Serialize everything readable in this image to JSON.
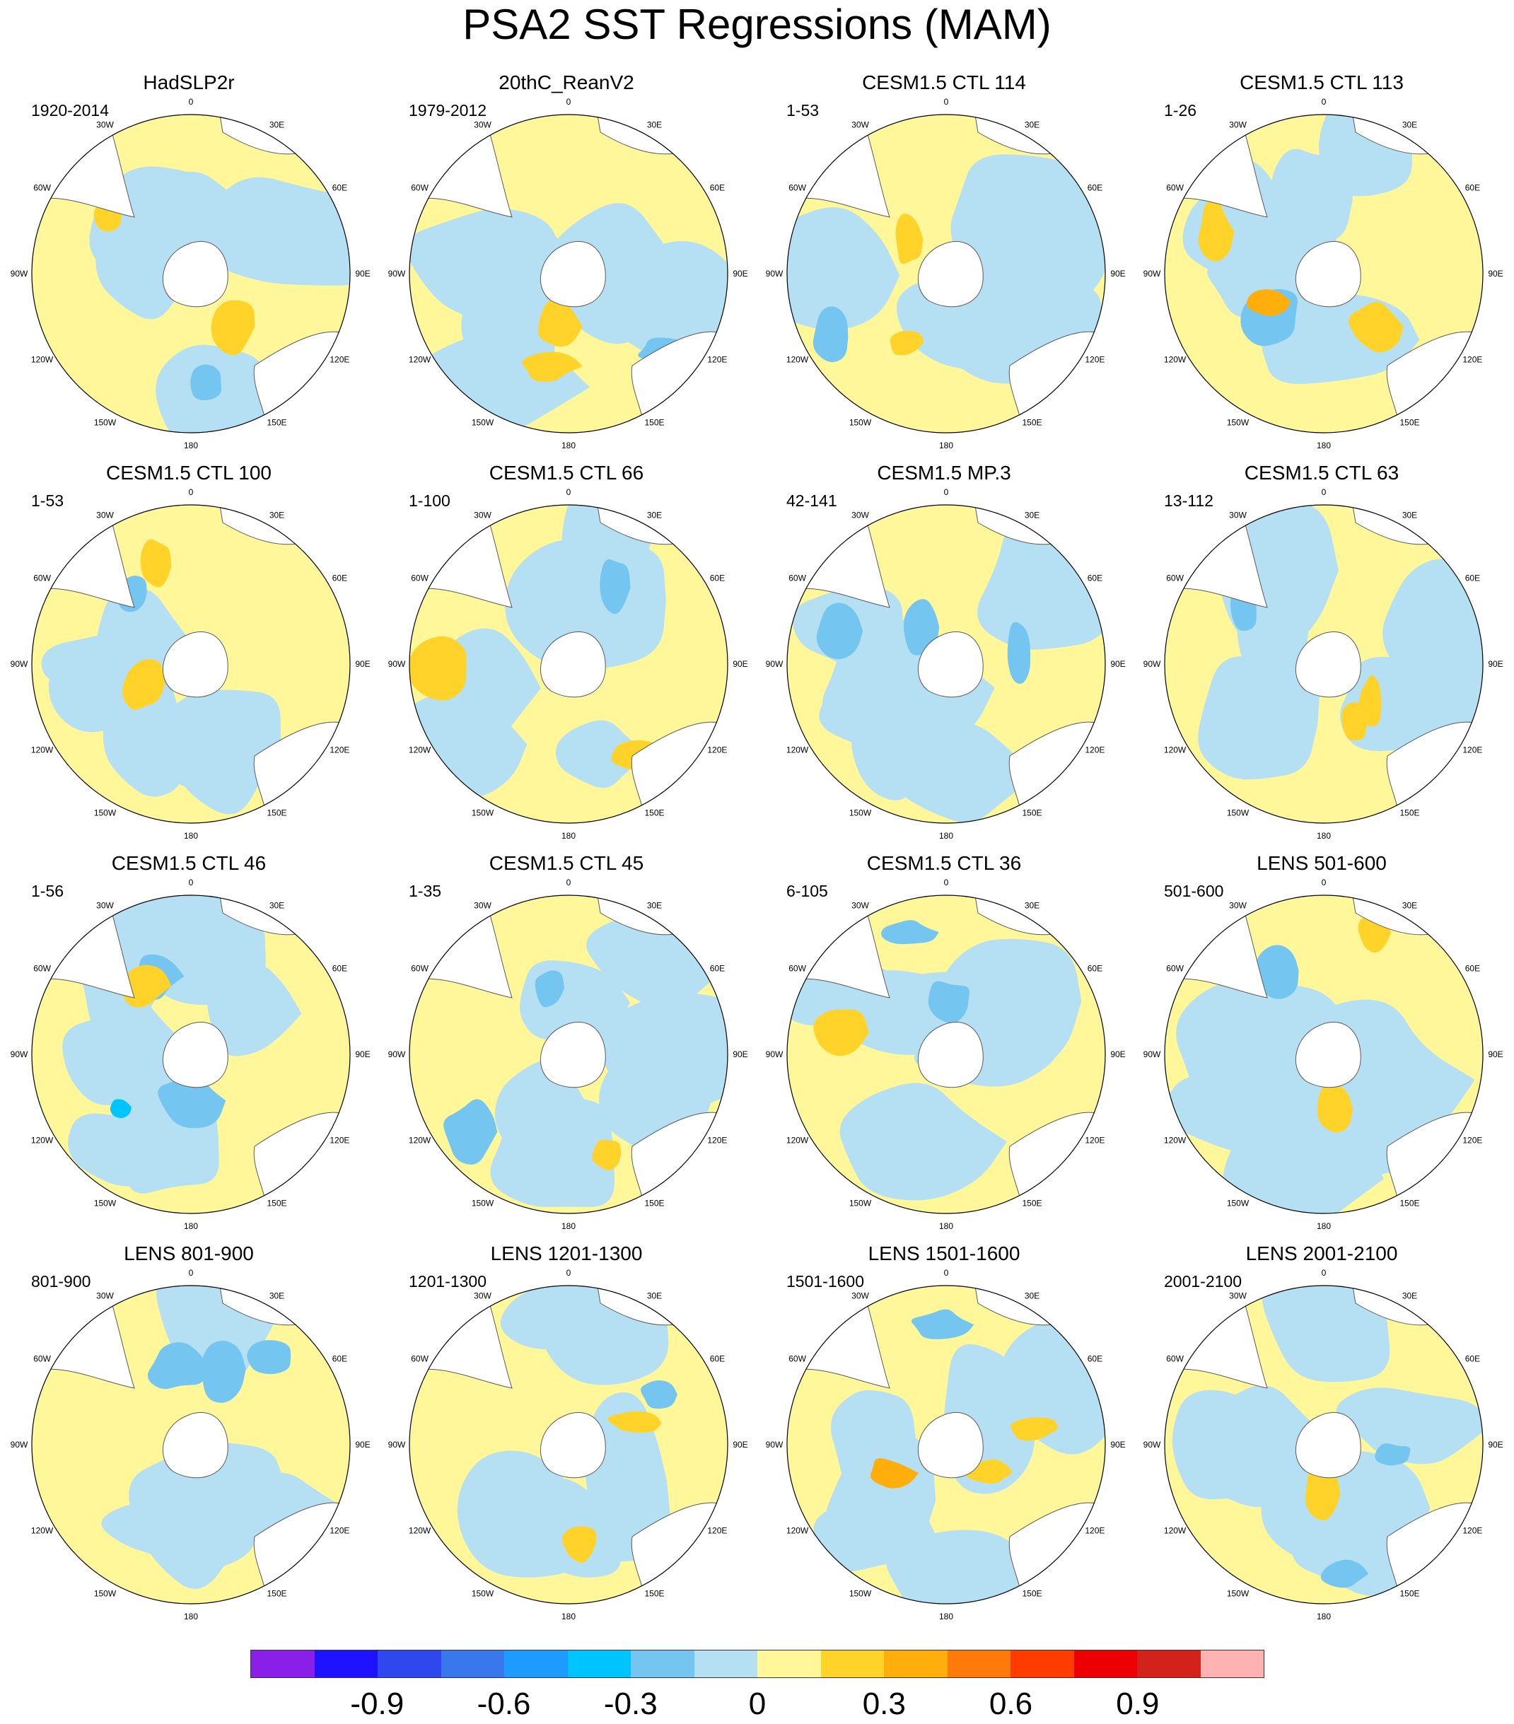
{
  "title": "PSA2 SST Regressions (MAM)",
  "longitude_labels": [
    "0",
    "30E",
    "60E",
    "90E",
    "120E",
    "150E",
    "180",
    "150W",
    "120W",
    "90W",
    "60W",
    "30W"
  ],
  "colors": {
    "land": "#ffffff",
    "coastline": "#5a5a5a",
    "map_border": "#000000"
  },
  "colorbar": {
    "colors": [
      "#8a1fe8",
      "#1e12ff",
      "#2e48ee",
      "#3a76ec",
      "#1e9bff",
      "#00c4ff",
      "#74c6f0",
      "#b5dff3",
      "#fff79a",
      "#ffd32a",
      "#ffae0c",
      "#ff7a0a",
      "#ff3c00",
      "#ec0004",
      "#d3211b",
      "#ffb2b2"
    ],
    "labels": [
      "-0.9",
      "-0.6",
      "-0.3",
      "0",
      "0.3",
      "0.6",
      "0.9"
    ]
  },
  "panels": [
    {
      "title": "HadSLP2r",
      "period": "1920-2014"
    },
    {
      "title": "20thC_ReanV2",
      "period": "1979-2012"
    },
    {
      "title": "CESM1.5 CTL 114",
      "period": "1-53"
    },
    {
      "title": "CESM1.5 CTL 113",
      "period": "1-26"
    },
    {
      "title": "CESM1.5 CTL 100",
      "period": "1-53"
    },
    {
      "title": "CESM1.5 CTL 66",
      "period": "1-100"
    },
    {
      "title": "CESM1.5 MP.3",
      "period": "42-141"
    },
    {
      "title": "CESM1.5 CTL 63",
      "period": "13-112"
    },
    {
      "title": "CESM1.5 CTL 46",
      "period": "1-56"
    },
    {
      "title": "CESM1.5 CTL 45",
      "period": "1-35"
    },
    {
      "title": "CESM1.5 CTL 36",
      "period": "6-105"
    },
    {
      "title": "LENS 501-600",
      "period": "501-600"
    },
    {
      "title": "LENS 801-900",
      "period": "801-900"
    },
    {
      "title": "LENS 1201-1300",
      "period": "1201-1300"
    },
    {
      "title": "LENS 1501-1600",
      "period": "1501-1600"
    },
    {
      "title": "LENS 2001-2100",
      "period": "2001-2100"
    }
  ]
}
